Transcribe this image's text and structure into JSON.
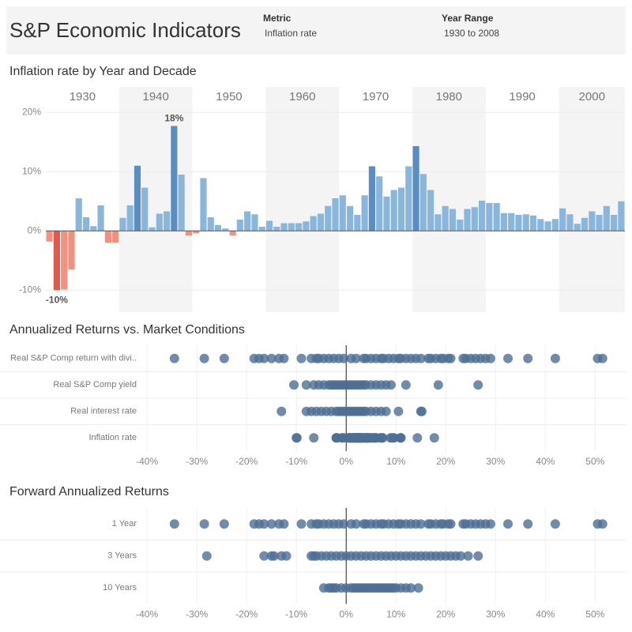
{
  "header": {
    "title": "S&P Economic Indicators",
    "filters": [
      {
        "label": "Metric",
        "value": "Inflation rate"
      },
      {
        "label": "Year Range",
        "value": "1930 to 2008"
      }
    ]
  },
  "chart_data": [
    {
      "type": "bar",
      "title": "Inflation rate by Year and Decade",
      "x": [
        1930,
        1931,
        1932,
        1933,
        1934,
        1935,
        1936,
        1937,
        1938,
        1939,
        1940,
        1941,
        1942,
        1943,
        1944,
        1945,
        1946,
        1947,
        1948,
        1949,
        1950,
        1951,
        1952,
        1953,
        1954,
        1955,
        1956,
        1957,
        1958,
        1959,
        1960,
        1961,
        1962,
        1963,
        1964,
        1965,
        1966,
        1967,
        1968,
        1969,
        1970,
        1971,
        1972,
        1973,
        1974,
        1975,
        1976,
        1977,
        1978,
        1979,
        1980,
        1981,
        1982,
        1983,
        1984,
        1985,
        1986,
        1987,
        1988,
        1989,
        1990,
        1991,
        1992,
        1993,
        1994,
        1995,
        1996,
        1997,
        1998,
        1999,
        2000,
        2001,
        2002,
        2003,
        2004,
        2005,
        2006,
        2007,
        2008
      ],
      "values": [
        -1.8,
        -10,
        -9.9,
        -6.5,
        5.5,
        2.3,
        0.8,
        4.3,
        -2.0,
        -2.0,
        2.2,
        4.3,
        11.0,
        7.3,
        0.6,
        2.9,
        3.3,
        17.7,
        9.5,
        -0.8,
        -0.4,
        8.9,
        2.3,
        1.0,
        0.4,
        -0.8,
        1.9,
        3.3,
        2.8,
        0.7,
        1.7,
        0.7,
        1.3,
        1.3,
        1.3,
        1.6,
        2.5,
        2.9,
        4.2,
        5.5,
        6.0,
        4.2,
        2.7,
        6.0,
        10.9,
        9.2,
        5.8,
        6.9,
        7.3,
        10.9,
        14.3,
        9.6,
        6.9,
        2.8,
        4.2,
        3.7,
        1.9,
        3.7,
        4.0,
        5.1,
        4.7,
        4.7,
        3.0,
        3.0,
        2.7,
        2.8,
        2.6,
        2.0,
        1.6,
        2.0,
        3.8,
        2.8,
        1.2,
        2.2,
        3.3,
        2.7,
        4.2,
        2.7,
        5.0
      ],
      "value_labels": [
        null,
        "-10%",
        null,
        null,
        null,
        null,
        null,
        null,
        null,
        null,
        null,
        null,
        null,
        null,
        null,
        null,
        null,
        "18%",
        null,
        null,
        null,
        null,
        null,
        null,
        null,
        null,
        null,
        null,
        null,
        null,
        null,
        null,
        null,
        null,
        null,
        null,
        null,
        null,
        null,
        null,
        null,
        null,
        null,
        null,
        null,
        null,
        null,
        null,
        null,
        null,
        null,
        null,
        null,
        null,
        null,
        null,
        null,
        null,
        null,
        null,
        null,
        null,
        null,
        null,
        null,
        null,
        null,
        null,
        null,
        null,
        null,
        null,
        null,
        null,
        null,
        null,
        null,
        null,
        null
      ],
      "colors": [
        "#f4907f",
        "#e05a4b",
        "#f4907f",
        "#f4907f",
        "#8ab6dc",
        "#8ab6dc",
        "#8ab6dc",
        "#8ab6dc",
        "#f4907f",
        "#f4907f",
        "#8ab6dc",
        "#8ab6dc",
        "#5b8dc1",
        "#8ab6dc",
        "#8ab6dc",
        "#8ab6dc",
        "#8ab6dc",
        "#5b8dc1",
        "#8ab6dc",
        "#f4907f",
        "#f4907f",
        "#8ab6dc",
        "#8ab6dc",
        "#8ab6dc",
        "#8ab6dc",
        "#f4907f",
        "#8ab6dc",
        "#8ab6dc",
        "#8ab6dc",
        "#8ab6dc",
        "#8ab6dc",
        "#8ab6dc",
        "#8ab6dc",
        "#8ab6dc",
        "#8ab6dc",
        "#8ab6dc",
        "#8ab6dc",
        "#8ab6dc",
        "#8ab6dc",
        "#8ab6dc",
        "#8ab6dc",
        "#8ab6dc",
        "#8ab6dc",
        "#8ab6dc",
        "#5b8dc1",
        "#8ab6dc",
        "#8ab6dc",
        "#8ab6dc",
        "#8ab6dc",
        "#8ab6dc",
        "#5b8dc1",
        "#8ab6dc",
        "#8ab6dc",
        "#8ab6dc",
        "#8ab6dc",
        "#8ab6dc",
        "#8ab6dc",
        "#8ab6dc",
        "#8ab6dc",
        "#8ab6dc",
        "#8ab6dc",
        "#8ab6dc",
        "#8ab6dc",
        "#8ab6dc",
        "#8ab6dc",
        "#8ab6dc",
        "#8ab6dc",
        "#8ab6dc",
        "#8ab6dc",
        "#8ab6dc",
        "#8ab6dc",
        "#8ab6dc",
        "#8ab6dc",
        "#8ab6dc",
        "#8ab6dc",
        "#8ab6dc",
        "#8ab6dc",
        "#8ab6dc",
        "#8ab6dc"
      ],
      "xlim": [
        1929.5,
        2008.5
      ],
      "xticks": [
        1930,
        1940,
        1950,
        1960,
        1970,
        1980,
        1990,
        2000
      ],
      "ylim": [
        -13.7,
        20.7
      ],
      "yticks": [
        {
          "value": -10,
          "label": "-10%"
        },
        {
          "value": 0,
          "label": "0%"
        },
        {
          "value": 10,
          "label": "10%"
        },
        {
          "value": 20,
          "label": "20%"
        }
      ],
      "grid": true,
      "band_shading": true
    },
    {
      "type": "strip",
      "title": "Annualized Returns vs. Market Conditions",
      "color": "#4e6e93",
      "categories": [
        "Real S&P Comp return with divi..",
        "Real S&P Comp yield",
        "Real interest rate",
        "Inflation rate"
      ],
      "values": [
        [
          -34.5,
          -28.5,
          -24.5,
          -18.5,
          -17.5,
          -16.5,
          -15,
          -13.5,
          -12.5,
          -9,
          -7,
          -6,
          -5.5,
          -4.5,
          -3.5,
          -2.5,
          -1.5,
          -0.5,
          1,
          2,
          3.5,
          4,
          5,
          6,
          7,
          7.5,
          8.5,
          9.5,
          10.5,
          11,
          12,
          13,
          14,
          15,
          16.5,
          17,
          18,
          19,
          19.5,
          20.5,
          21,
          23.5,
          24,
          25,
          26,
          27,
          28,
          29,
          32.5,
          36.5,
          42,
          50.5,
          51.5
        ],
        [
          -10.5,
          -8,
          -6.5,
          -5.5,
          -4.5,
          -3.5,
          -3,
          -2.5,
          -2,
          -1.5,
          -1,
          -0.5,
          0,
          0.5,
          1,
          1.5,
          2,
          2.5,
          3,
          3.5,
          4,
          5,
          6,
          7,
          8,
          9,
          12,
          18.5,
          26.5
        ],
        [
          -13,
          -8,
          -7,
          -6,
          -5,
          -4,
          -3,
          -2,
          -1.5,
          -1,
          -0.5,
          0,
          0.5,
          1,
          1.5,
          2,
          2.5,
          3,
          3.5,
          4,
          5,
          6,
          7,
          8,
          10.5,
          15,
          15.2
        ],
        [
          -1.8,
          -10,
          -9.9,
          -6.5,
          5.5,
          2.3,
          0.8,
          4.3,
          -2.0,
          -2.0,
          2.2,
          4.3,
          11.0,
          7.3,
          0.6,
          2.9,
          3.3,
          17.7,
          9.5,
          -0.8,
          -0.4,
          8.9,
          2.3,
          1.0,
          0.4,
          -0.8,
          1.9,
          3.3,
          2.8,
          0.7,
          1.7,
          0.7,
          1.3,
          1.3,
          1.3,
          1.6,
          2.5,
          2.9,
          4.2,
          5.5,
          6.0,
          4.2,
          2.7,
          6.0,
          10.9,
          9.2,
          5.8,
          6.9,
          7.3,
          10.9,
          14.3,
          9.6,
          6.9,
          2.8,
          4.2,
          3.7,
          1.9,
          3.7,
          4.0,
          5.1,
          4.7,
          4.7,
          3.0,
          3.0,
          2.7,
          2.8,
          2.6,
          2.0,
          1.6,
          2.0,
          3.8,
          2.8,
          1.2,
          2.2,
          3.3,
          2.7,
          4.2,
          2.7,
          5.0
        ]
      ],
      "xlim": [
        -40.5,
        56.3
      ],
      "xticks": [
        {
          "value": -40,
          "label": "-40%"
        },
        {
          "value": -30,
          "label": "-30%"
        },
        {
          "value": -20,
          "label": "-20%"
        },
        {
          "value": -10,
          "label": "-10%"
        },
        {
          "value": 0,
          "label": "0%"
        },
        {
          "value": 10,
          "label": "10%"
        },
        {
          "value": 20,
          "label": "20%"
        },
        {
          "value": 30,
          "label": "30%"
        },
        {
          "value": 40,
          "label": "40%"
        },
        {
          "value": 50,
          "label": "50%"
        }
      ],
      "grid": true
    },
    {
      "type": "strip",
      "title": "Forward Annualized Returns",
      "color": "#4e6e93",
      "categories": [
        "1 Year",
        "3 Years",
        "10 Years"
      ],
      "values": [
        [
          -34.5,
          -28.5,
          -24.5,
          -18.5,
          -17.5,
          -16.5,
          -15,
          -13.5,
          -12.5,
          -9,
          -7,
          -6,
          -5.5,
          -4.5,
          -3.5,
          -2.5,
          -1.5,
          -0.5,
          1,
          2,
          3.5,
          4,
          5,
          6,
          7,
          7.5,
          8.5,
          9.5,
          10.5,
          11,
          12,
          13,
          14,
          15,
          16.5,
          17,
          18,
          19,
          19.5,
          20.5,
          21,
          23.5,
          24,
          25,
          26,
          27,
          28,
          29,
          32.5,
          36.5,
          42,
          50.5,
          51.5
        ],
        [
          -28,
          -16.5,
          -15,
          -14.5,
          -13,
          -12,
          -7,
          -6.5,
          -6,
          -5,
          -4,
          -3,
          -2,
          -1,
          0,
          1,
          2,
          3,
          4,
          5,
          6,
          7,
          8,
          9,
          10,
          11,
          12,
          13,
          14,
          15,
          16,
          17,
          18,
          19,
          20,
          21,
          22,
          23,
          24.5,
          26.5
        ],
        [
          -4.5,
          -3.5,
          -3,
          -2.5,
          -2,
          -1,
          0,
          1,
          1.5,
          2,
          2.5,
          3,
          3.5,
          4,
          4.5,
          5,
          5.5,
          6,
          6.5,
          7,
          7.5,
          8,
          8.5,
          9,
          9.5,
          10,
          11,
          12,
          13,
          14.5
        ]
      ],
      "xlim": [
        -40.5,
        56.3
      ],
      "xticks": [
        {
          "value": -40,
          "label": "-40%"
        },
        {
          "value": -30,
          "label": "-30%"
        },
        {
          "value": -20,
          "label": "-20%"
        },
        {
          "value": -10,
          "label": "-10%"
        },
        {
          "value": 0,
          "label": "0%"
        },
        {
          "value": 10,
          "label": "10%"
        },
        {
          "value": 20,
          "label": "20%"
        },
        {
          "value": 30,
          "label": "30%"
        },
        {
          "value": 40,
          "label": "40%"
        },
        {
          "value": 50,
          "label": "50%"
        }
      ],
      "grid": true
    }
  ]
}
